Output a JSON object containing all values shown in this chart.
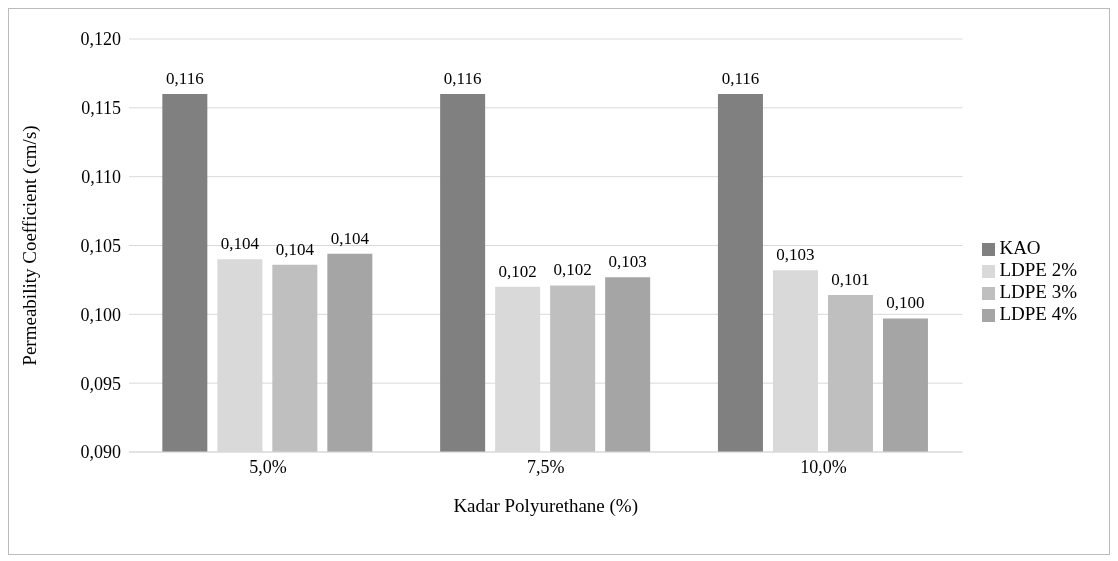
{
  "chart_data": {
    "type": "bar",
    "xlabel": "Kadar Polyurethane (%)",
    "ylabel": "Permeability Coefficient (cm/s)",
    "categories": [
      "5,0%",
      "7,5%",
      "10,0%"
    ],
    "series": [
      {
        "name": "KAO",
        "color": "#808080",
        "values": [
          0.116,
          0.116,
          0.116
        ],
        "value_labels": [
          "0,116",
          "0,116",
          "0,116"
        ]
      },
      {
        "name": "LDPE 2%",
        "color": "#d9d9d9",
        "values": [
          0.104,
          0.102,
          0.1032
        ],
        "value_labels": [
          "0,104",
          "0,102",
          "0,103"
        ]
      },
      {
        "name": "LDPE 3%",
        "color": "#bfbfbf",
        "values": [
          0.1036,
          0.1021,
          0.1014
        ],
        "value_labels": [
          "0,104",
          "0,102",
          "0,101"
        ]
      },
      {
        "name": "LDPE 4%",
        "color": "#a5a5a5",
        "values": [
          0.1044,
          0.1027,
          0.0997
        ],
        "value_labels": [
          "0,104",
          "0,103",
          "0,100"
        ]
      }
    ],
    "ylim": [
      0.09,
      0.12
    ],
    "yticks": [
      {
        "value": 0.09,
        "label": "0,090"
      },
      {
        "value": 0.095,
        "label": "0,095"
      },
      {
        "value": 0.1,
        "label": "0,100"
      },
      {
        "value": 0.105,
        "label": "0,105"
      },
      {
        "value": 0.11,
        "label": "0,110"
      },
      {
        "value": 0.115,
        "label": "0,115"
      },
      {
        "value": 0.12,
        "label": "0,120"
      }
    ],
    "grid": "y",
    "legend": "right"
  }
}
